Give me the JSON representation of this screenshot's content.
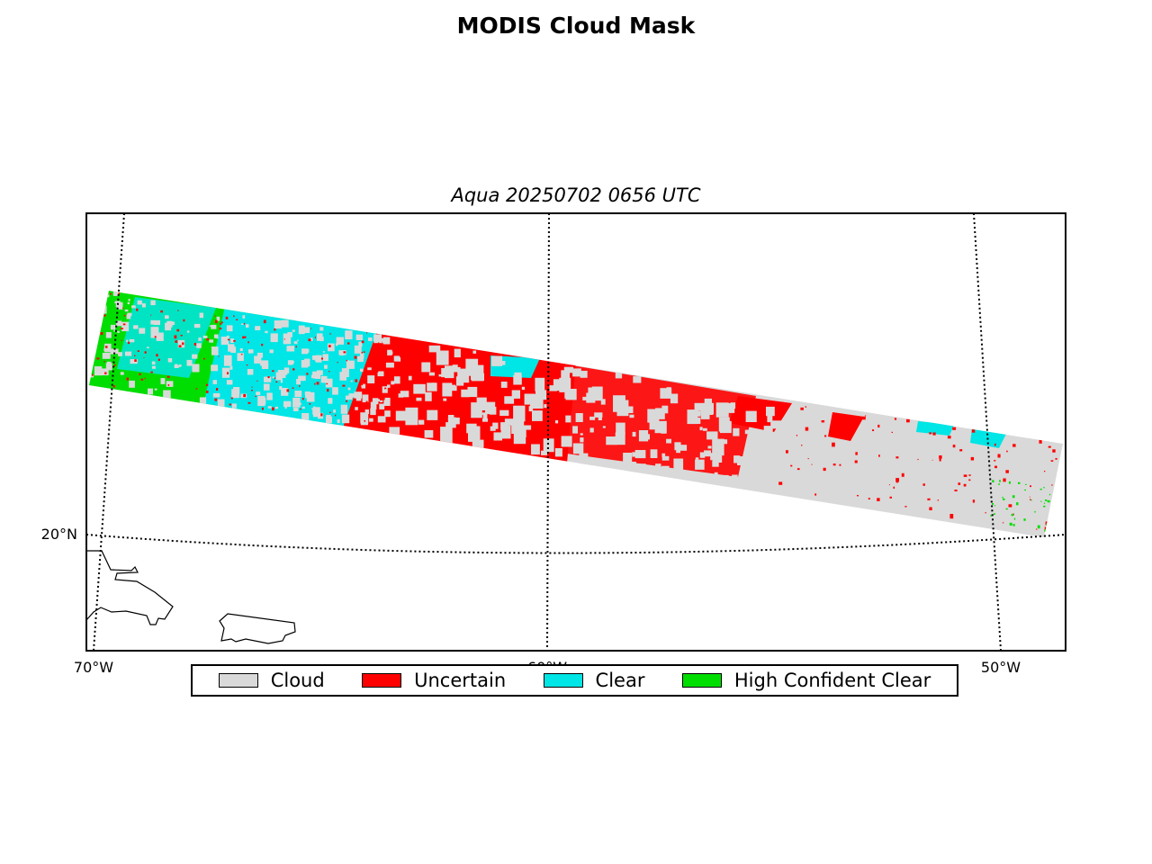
{
  "title": "MODIS Cloud Mask",
  "subtitle": "Aqua 20250702 0656 UTC",
  "map": {
    "type": "swath-map",
    "gridlines": "dotted",
    "lat_labels": [
      {
        "text": "20°N",
        "lat": 20
      }
    ],
    "lon_labels": [
      {
        "text": "70°W",
        "lon": -70
      },
      {
        "text": "60°W",
        "lon": -60
      },
      {
        "text": "50°W",
        "lon": -50
      }
    ]
  },
  "legend": {
    "placement": "bottom-center",
    "items": [
      {
        "label": "Cloud",
        "color": "#d9d9d9"
      },
      {
        "label": "Uncertain",
        "color": "#ff0000"
      },
      {
        "label": "Clear",
        "color": "#00e5e5"
      },
      {
        "label": "High Confident Clear",
        "color": "#00dd00"
      }
    ]
  }
}
